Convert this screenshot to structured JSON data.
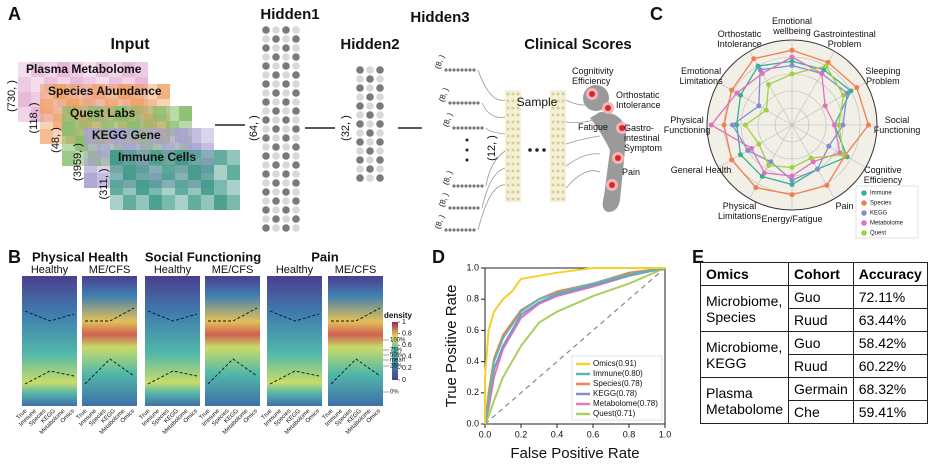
{
  "panel_a": {
    "letter": "A",
    "input_title": "Input",
    "layers": [
      "Plasma Metabolome",
      "Species Abundance",
      "Quest Labs",
      "KEGG Gene",
      "Immune Cells"
    ],
    "layer_dims": [
      "(730, )",
      "(118, )",
      "(48, )",
      "(3959, )",
      "(311, )"
    ],
    "hidden1": "Hidden1",
    "hidden1_dim": "(64, )",
    "hidden2": "Hidden2",
    "hidden2_dim": "(32, )",
    "hidden3": "Hidden3",
    "hidden3_dim": "(12, )",
    "small_dims": [
      "(8, )",
      "(8, )",
      "(8, )",
      "(8, )",
      "(8, )",
      "(8, )"
    ],
    "sample": "Sample",
    "clinical_title": "Clinical Scores",
    "scores": [
      "Cognitivity Efficiency",
      "Orthostatic Intolerance",
      "Fatigue",
      "Gastro-intestinal Symptom",
      "Pain"
    ]
  },
  "panel_b": {
    "letter": "B",
    "groups": [
      {
        "title": "Physical Health",
        "cohorts": [
          "Healthy",
          "ME/CFS"
        ]
      },
      {
        "title": "Social Functioning",
        "cohorts": [
          "Healthy",
          "ME/CFS"
        ]
      },
      {
        "title": "Pain",
        "cohorts": [
          "Healthy",
          "ME/CFS"
        ]
      }
    ],
    "x_labels": [
      "True",
      "Immune",
      "Species",
      "KEGG",
      "Metabolome",
      "Omics"
    ],
    "colorbar_label": "density",
    "colorbar_lim": [
      0,
      1
    ],
    "colorbar_ticks": [
      0,
      0.2,
      0.4,
      0.6,
      0.8,
      1
    ],
    "percentile_labels": [
      "100%",
      "75%",
      "50%",
      "mean",
      "25%",
      "0%"
    ]
  },
  "panel_c": {
    "letter": "C",
    "type": "radar",
    "axes": [
      "Emotional wellbeing",
      "Gastrointestinal Problem",
      "Sleeping Problem",
      "Social Functioning",
      "Cognitive Efficiency",
      "Pain",
      "Energy/Fatigue",
      "Physical Limitations",
      "General Health",
      "Physical Functioning",
      "Emotional Limitations",
      "Orthostatic Intolerance"
    ],
    "rlim": [
      0,
      1
    ],
    "series": [
      {
        "name": "Immune",
        "color": "#3aaf94",
        "values": [
          0.75,
          0.75,
          0.8,
          0.5,
          0.75,
          0.6,
          0.7,
          0.7,
          0.7,
          0.65,
          0.7,
          0.8
        ]
      },
      {
        "name": "Species",
        "color": "#f07f4f",
        "values": [
          0.88,
          0.85,
          0.88,
          0.9,
          0.72,
          0.82,
          0.82,
          0.85,
          0.82,
          0.8,
          0.82,
          0.9
        ]
      },
      {
        "name": "KEGG",
        "color": "#7f8fd0",
        "values": [
          0.7,
          0.7,
          0.75,
          0.6,
          0.5,
          0.6,
          0.65,
          0.5,
          0.6,
          0.7,
          0.45,
          0.75
        ]
      },
      {
        "name": "Metabolome",
        "color": "#e070c0",
        "values": [
          0.8,
          0.7,
          0.45,
          0.5,
          0.65,
          0.5,
          0.6,
          0.65,
          0.55,
          0.95,
          0.75,
          0.7
        ]
      },
      {
        "name": "Quest",
        "color": "#a2d044",
        "values": [
          0.6,
          0.8,
          0.7,
          0.55,
          0.7,
          0.45,
          0.5,
          0.55,
          0.45,
          0.55,
          0.35,
          0.55
        ]
      }
    ]
  },
  "panel_d": {
    "letter": "D",
    "type": "line",
    "x_label": "False Positive Rate",
    "y_label": "True Positive Rate",
    "xlim": [
      0,
      1
    ],
    "ylim": [
      0,
      1
    ],
    "xticks": [
      {
        "value": 0,
        "label": "0.0"
      },
      0.2,
      0.4,
      0.6,
      0.8,
      {
        "value": 1,
        "label": "1.0"
      }
    ],
    "yticks": [
      {
        "value": 0,
        "label": "0.0"
      },
      0.2,
      0.4,
      0.6,
      0.8,
      {
        "value": 1,
        "label": "1.0"
      }
    ],
    "series": [
      {
        "name": "Omics(0.91)",
        "color": "#f5cf2c",
        "x": [
          0,
          0,
          0.02,
          0.05,
          0.1,
          0.15,
          0.2,
          0.3,
          0.4,
          0.6,
          0.8,
          1
        ],
        "values": [
          0,
          0.3,
          0.6,
          0.72,
          0.8,
          0.85,
          0.93,
          0.95,
          0.97,
          1,
          1,
          1
        ]
      },
      {
        "name": "Immune(0.80)",
        "color": "#5fb8a8",
        "x": [
          0,
          0.02,
          0.05,
          0.1,
          0.2,
          0.3,
          0.4,
          0.6,
          0.8,
          1
        ],
        "values": [
          0,
          0.15,
          0.4,
          0.55,
          0.72,
          0.8,
          0.84,
          0.9,
          0.96,
          1
        ]
      },
      {
        "name": "Species(0.78)",
        "color": "#f08050",
        "x": [
          0,
          0.02,
          0.05,
          0.1,
          0.2,
          0.3,
          0.4,
          0.6,
          0.8,
          1
        ],
        "values": [
          0,
          0.2,
          0.42,
          0.57,
          0.73,
          0.8,
          0.85,
          0.9,
          0.97,
          1
        ]
      },
      {
        "name": "KEGG(0.78)",
        "color": "#8090c8",
        "x": [
          0,
          0.02,
          0.05,
          0.1,
          0.2,
          0.3,
          0.4,
          0.6,
          0.8,
          1
        ],
        "values": [
          0,
          0.15,
          0.35,
          0.5,
          0.7,
          0.78,
          0.83,
          0.89,
          0.95,
          1
        ]
      },
      {
        "name": "Metabolome(0.78)",
        "color": "#e07ab8",
        "x": [
          0,
          0.02,
          0.05,
          0.1,
          0.2,
          0.3,
          0.4,
          0.6,
          0.8,
          1
        ],
        "values": [
          0,
          0.1,
          0.3,
          0.48,
          0.68,
          0.77,
          0.82,
          0.88,
          0.95,
          1
        ]
      },
      {
        "name": "Quest(0.71)",
        "color": "#a8d05a",
        "x": [
          0,
          0.02,
          0.05,
          0.1,
          0.2,
          0.3,
          0.4,
          0.6,
          0.8,
          1
        ],
        "values": [
          0,
          0.05,
          0.15,
          0.3,
          0.5,
          0.65,
          0.72,
          0.82,
          0.9,
          1
        ]
      }
    ]
  },
  "panel_e": {
    "letter": "E",
    "header": [
      "Omics",
      "Cohort",
      "Accuracy"
    ],
    "groups": [
      {
        "omics": "Microbiome, Species",
        "rows": [
          [
            "Guo",
            "72.11%"
          ],
          [
            "Ruud",
            "63.44%"
          ]
        ]
      },
      {
        "omics": "Microbiome, KEGG",
        "rows": [
          [
            "Guo",
            "58.42%"
          ],
          [
            "Ruud",
            "60.22%"
          ]
        ]
      },
      {
        "omics": "Plasma Metabolome",
        "rows": [
          [
            "Germain",
            "68.32%"
          ],
          [
            "Che",
            "59.41%"
          ]
        ]
      }
    ]
  }
}
